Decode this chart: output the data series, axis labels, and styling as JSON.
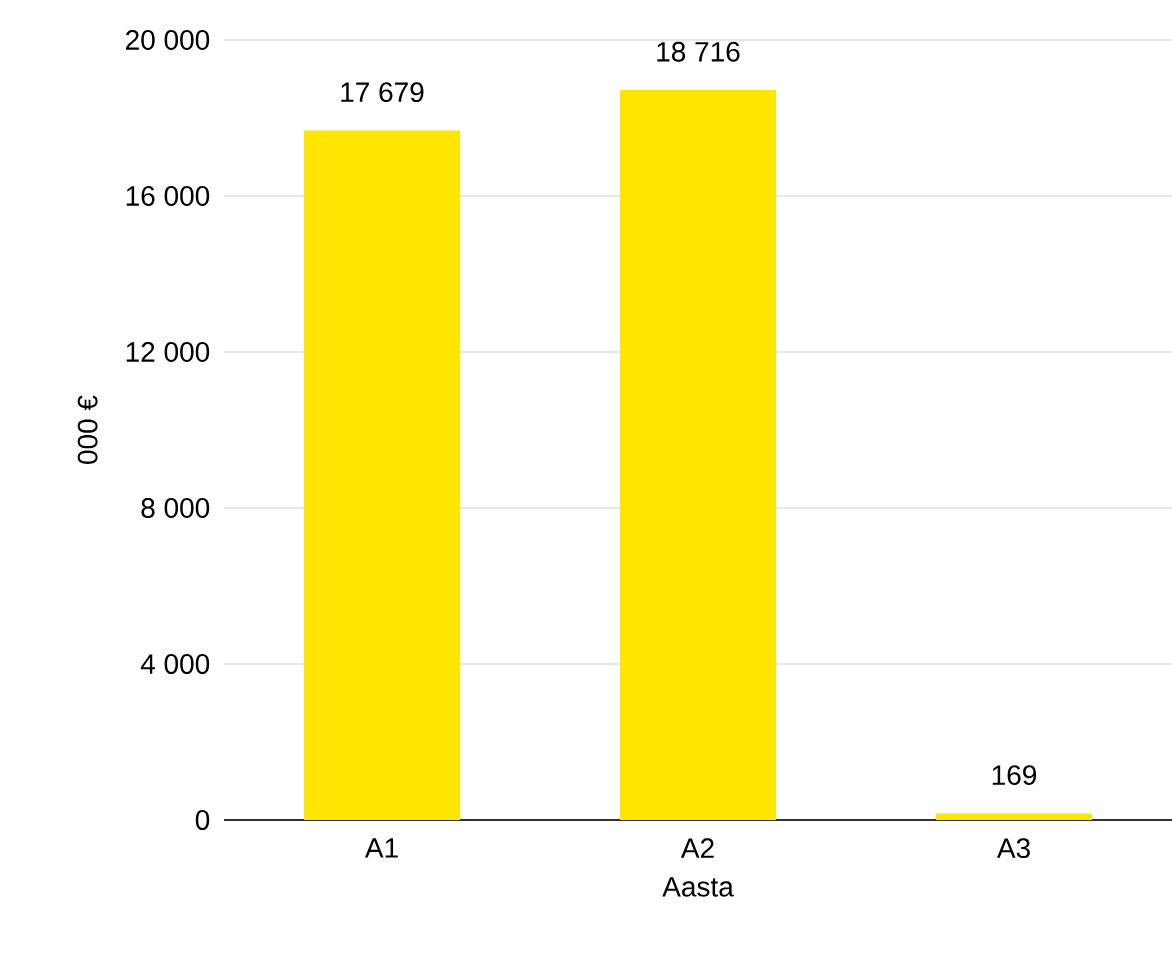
{
  "chart_data": {
    "type": "bar",
    "xlabel": "Aasta",
    "ylabel": "000 €",
    "categories": [
      "A1",
      "A2",
      "A3"
    ],
    "values": [
      17679,
      18716,
      169
    ],
    "value_labels": [
      "17 679",
      "18 716",
      "169"
    ],
    "color": "#ffe600",
    "ylim": [
      0,
      20000
    ],
    "yticks": [
      {
        "value": 0,
        "label": "0"
      },
      {
        "value": 4000,
        "label": "4 000"
      },
      {
        "value": 8000,
        "label": "8 000"
      },
      {
        "value": 12000,
        "label": "12 000"
      },
      {
        "value": 16000,
        "label": "16 000"
      },
      {
        "value": 20000,
        "label": "20 000"
      }
    ],
    "grid": "y"
  }
}
